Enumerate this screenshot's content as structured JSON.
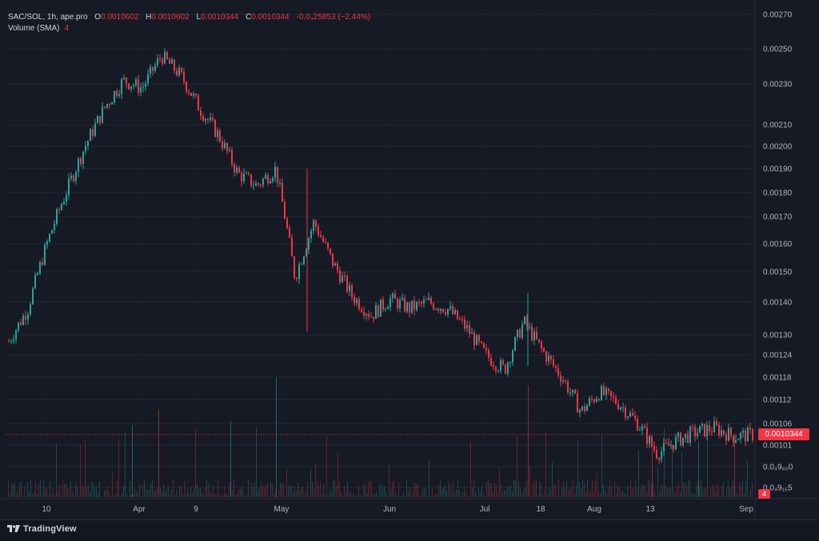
{
  "header": {
    "symbol": "SAC/SOL, 1h, ape.pro",
    "open_label": "O",
    "open": "0.0010602",
    "high_label": "H",
    "high": "0.0010602",
    "low_label": "L",
    "low": "0.0010344",
    "close_label": "C",
    "close": "0.0010344",
    "change": "-0.0₄25853 (−2.44%)"
  },
  "volume_legend": {
    "label": "Volume (SMA)",
    "value": "4"
  },
  "last_price": "0.0010344",
  "last_volume": "4",
  "brand": "TradingView",
  "colors": {
    "up": "#26a69a",
    "down": "#f23645",
    "background": "#161a25",
    "grid": "#232734",
    "text": "#d1d4dc"
  },
  "chart_data": {
    "type": "candlestick",
    "title": "SAC/SOL, 1h, ape.pro",
    "x_ticks": [
      "10",
      "Apr",
      "9",
      "May",
      "Jun",
      "Jul",
      "18",
      "Aug",
      "13",
      "Sep"
    ],
    "y_ticks": [
      "0.00270",
      "0.00250",
      "0.00230",
      "0.00210",
      "0.00200",
      "0.00190",
      "0.00180",
      "0.00170",
      "0.00160",
      "0.00150",
      "0.00140",
      "0.00130",
      "0.00124",
      "0.00118",
      "0.00112",
      "0.00106",
      "0.00101",
      "0.0₄9₆₀0",
      "0.0₄9₁₅5"
    ],
    "ylim": [
      0.00092,
      0.00272
    ],
    "grid": true,
    "series": [
      {
        "name": "Price",
        "x": [
          "Mar 01",
          "Mar 05",
          "Mar 10",
          "Mar 15",
          "Mar 20",
          "Mar 25",
          "Apr 01",
          "Apr 05",
          "Apr 09",
          "Apr 12",
          "Apr 16",
          "Apr 20",
          "Apr 25",
          "Apr 29",
          "May 03",
          "May 05",
          "May 07",
          "May 12",
          "May 20",
          "May 28",
          "Jun 05",
          "Jun 12",
          "Jun 20",
          "Jun 28",
          "Jul 03",
          "Jul 08",
          "Jul 12",
          "Jul 14",
          "Jul 18",
          "Jul 22",
          "Jul 26",
          "Jul 30",
          "Aug 04",
          "Aug 08",
          "Aug 12",
          "Aug 15",
          "Aug 20",
          "Aug 25",
          "Aug 30",
          "Sep 03"
        ],
        "close": [
          0.00128,
          0.00138,
          0.0016,
          0.0018,
          0.002,
          0.00218,
          0.00232,
          0.00228,
          0.00246,
          0.00235,
          0.00218,
          0.00205,
          0.00188,
          0.00183,
          0.0019,
          0.00148,
          0.00168,
          0.00153,
          0.00142,
          0.00136,
          0.00141,
          0.00138,
          0.0014,
          0.00138,
          0.00132,
          0.00124,
          0.0012,
          0.00134,
          0.00125,
          0.00118,
          0.00109,
          0.00114,
          0.00111,
          0.00106,
          0.00099,
          0.00102,
          0.00104,
          0.00105,
          0.00103,
          0.0010344
        ]
      }
    ]
  }
}
